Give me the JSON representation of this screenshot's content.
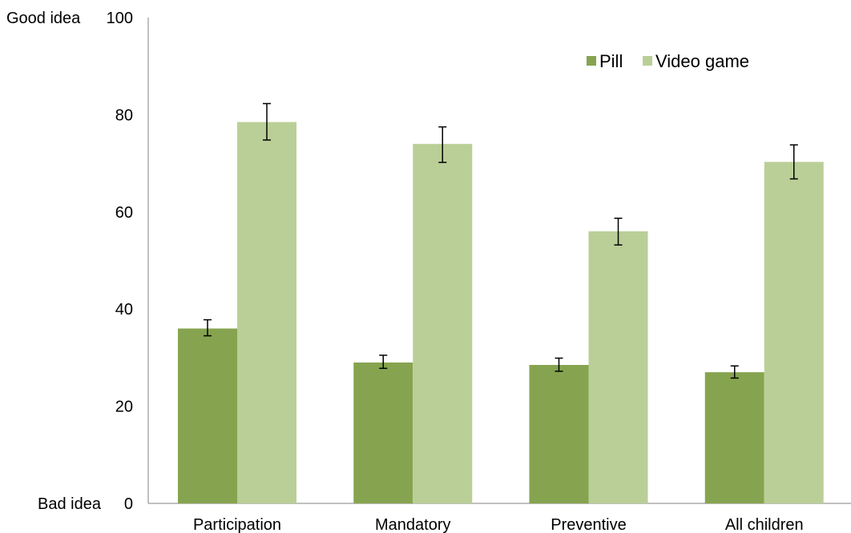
{
  "chart_data": {
    "type": "bar",
    "title": "",
    "xlabel": "",
    "ylabel": "",
    "ylim": [
      0,
      100
    ],
    "yticks": [
      0,
      20,
      40,
      60,
      80,
      100
    ],
    "y_end_labels": {
      "top": "Good idea",
      "bottom": "Bad idea"
    },
    "categories": [
      "Participation",
      "Mandatory",
      "Preventive",
      "All children"
    ],
    "series": [
      {
        "name": "Pill",
        "color": "#86a44f",
        "values": [
          36,
          29,
          28.5,
          27
        ],
        "error": [
          [
            34.5,
            37.8
          ],
          [
            27.8,
            30.5
          ],
          [
            27.2,
            29.9
          ],
          [
            25.8,
            28.3
          ]
        ]
      },
      {
        "name": "Video game",
        "color": "#bacf97",
        "values": [
          78.5,
          74,
          56,
          70.3
        ],
        "error": [
          [
            74.8,
            82.3
          ],
          [
            70.2,
            77.5
          ],
          [
            53.2,
            58.7
          ],
          [
            66.8,
            73.8
          ]
        ]
      }
    ],
    "legend": {
      "position": "top-right"
    },
    "grid": false
  }
}
